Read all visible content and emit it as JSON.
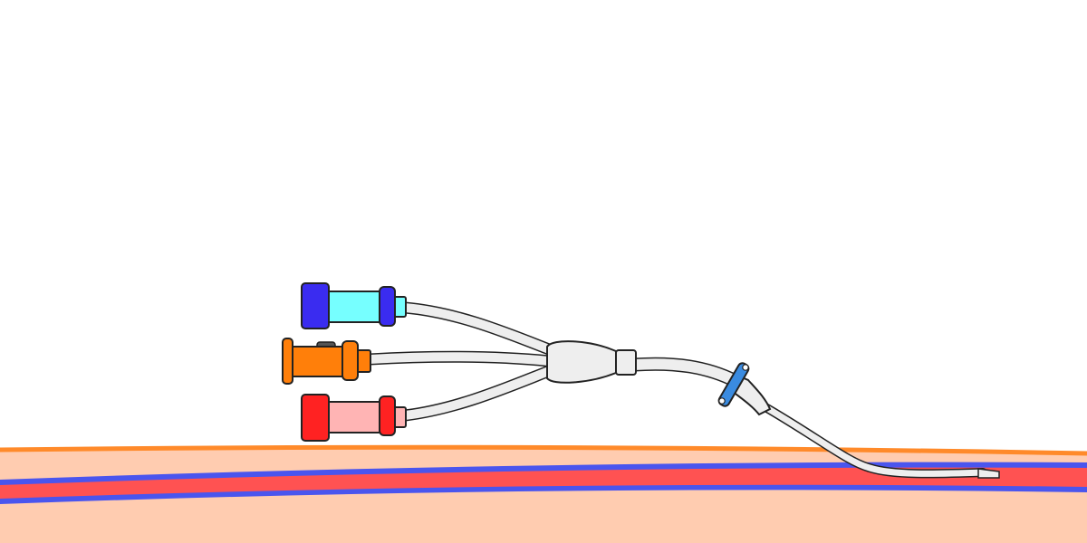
{
  "diagram": {
    "subject": "triple-lumen-catheter-in-vein",
    "colors": {
      "background": "#ffffff",
      "skin": "#ffccb0",
      "skin_surface": "#ff8a2a",
      "vessel_wall": "#4a55ee",
      "blood": "#ff5252",
      "catheter_body": "#eeeeee",
      "outline": "#222222",
      "port_blue_cap": "#3a2cf0",
      "port_blue_body": "#76ffff",
      "port_orange": "#ff7f0a",
      "port_orange_clamp": "#555555",
      "port_red_cap": "#ff2222",
      "port_red_body": "#ffb4b4",
      "suture_wing": "#3a8be0"
    },
    "ports": [
      {
        "id": "proximal",
        "cap_color": "#3a2cf0",
        "body_color": "#76ffff"
      },
      {
        "id": "medial",
        "cap_color": "#ff7f0a",
        "body_color": "#ff7f0a"
      },
      {
        "id": "distal",
        "cap_color": "#ff2222",
        "body_color": "#ffb4b4"
      }
    ]
  }
}
